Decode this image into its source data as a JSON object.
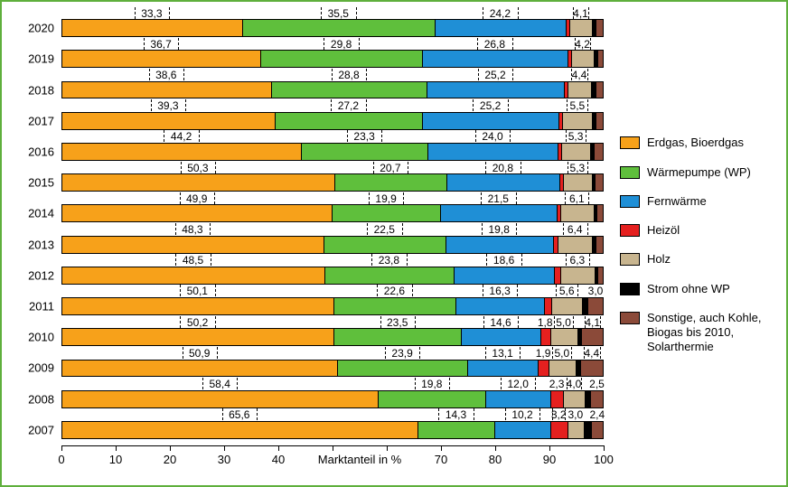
{
  "chart": {
    "type": "stacked-bar-horizontal",
    "xlim": [
      0,
      100
    ],
    "xtick_step": 10,
    "xlabel": "Marktanteil in %",
    "background_color": "#ffffff",
    "border_color": "#5FAF3C",
    "label_fontsize": 13,
    "data_label_fontsize": 12,
    "bar_height_ratio": 0.58,
    "years": [
      "2020",
      "2019",
      "2018",
      "2017",
      "2016",
      "2015",
      "2014",
      "2013",
      "2012",
      "2011",
      "2010",
      "2009",
      "2008",
      "2007"
    ],
    "series": [
      {
        "key": "erdgas",
        "label": "Erdgas, Bioerdgas",
        "color": "#F7A11A"
      },
      {
        "key": "wp",
        "label": "Wärmepumpe (WP)",
        "color": "#5FBF3C"
      },
      {
        "key": "fern",
        "label": "Fernwärme",
        "color": "#1F8FD6"
      },
      {
        "key": "heizol",
        "label": "Heizöl",
        "color": "#E5201F"
      },
      {
        "key": "holz",
        "label": "Holz",
        "color": "#C8B58F"
      },
      {
        "key": "strom",
        "label": "Strom ohne WP",
        "color": "#000000"
      },
      {
        "key": "sonst",
        "label": "Sonstige, auch Kohle, Biogas bis 2010, Solarthermie",
        "color": "#8B4A39"
      }
    ],
    "data": {
      "2020": {
        "erdgas": 33.3,
        "wp": 35.5,
        "fern": 24.2,
        "heizol": 0.7,
        "holz": 4.1,
        "strom": 0.7,
        "sonst": 1.5
      },
      "2019": {
        "erdgas": 36.7,
        "wp": 29.8,
        "fern": 26.8,
        "heizol": 0.7,
        "holz": 4.2,
        "strom": 0.6,
        "sonst": 1.2
      },
      "2018": {
        "erdgas": 38.6,
        "wp": 28.8,
        "fern": 25.2,
        "heizol": 0.7,
        "holz": 4.4,
        "strom": 0.8,
        "sonst": 1.5
      },
      "2017": {
        "erdgas": 39.3,
        "wp": 27.2,
        "fern": 25.2,
        "heizol": 0.7,
        "holz": 5.5,
        "strom": 0.6,
        "sonst": 1.5
      },
      "2016": {
        "erdgas": 44.2,
        "wp": 23.3,
        "fern": 24.0,
        "heizol": 0.7,
        "holz": 5.3,
        "strom": 0.7,
        "sonst": 1.8
      },
      "2015": {
        "erdgas": 50.3,
        "wp": 20.7,
        "fern": 20.8,
        "heizol": 0.7,
        "holz": 5.3,
        "strom": 0.6,
        "sonst": 1.6
      },
      "2014": {
        "erdgas": 49.9,
        "wp": 19.9,
        "fern": 21.5,
        "heizol": 0.7,
        "holz": 6.1,
        "strom": 0.5,
        "sonst": 1.4
      },
      "2013": {
        "erdgas": 48.3,
        "wp": 22.5,
        "fern": 19.8,
        "heizol": 0.9,
        "holz": 6.4,
        "strom": 0.6,
        "sonst": 1.5
      },
      "2012": {
        "erdgas": 48.5,
        "wp": 23.8,
        "fern": 18.6,
        "heizol": 1.1,
        "holz": 6.3,
        "strom": 0.5,
        "sonst": 1.2
      },
      "2011": {
        "erdgas": 50.1,
        "wp": 22.6,
        "fern": 16.3,
        "heizol": 1.4,
        "holz": 5.6,
        "strom": 1.0,
        "sonst": 3.0
      },
      "2010": {
        "erdgas": 50.2,
        "wp": 23.5,
        "fern": 14.6,
        "heizol": 1.8,
        "holz": 5.0,
        "strom": 0.8,
        "sonst": 4.1
      },
      "2009": {
        "erdgas": 50.9,
        "wp": 23.9,
        "fern": 13.1,
        "heizol": 1.9,
        "holz": 5.0,
        "strom": 0.8,
        "sonst": 4.4
      },
      "2008": {
        "erdgas": 58.4,
        "wp": 19.8,
        "fern": 12.0,
        "heizol": 2.3,
        "holz": 4.0,
        "strom": 1.0,
        "sonst": 2.5
      },
      "2007": {
        "erdgas": 65.6,
        "wp": 14.3,
        "fern": 10.2,
        "heizol": 3.2,
        "holz": 3.0,
        "strom": 1.3,
        "sonst": 2.4
      }
    },
    "show_labels": {
      "2020": [
        "erdgas",
        "wp",
        "fern",
        "holz"
      ],
      "2019": [
        "erdgas",
        "wp",
        "fern",
        "holz"
      ],
      "2018": [
        "erdgas",
        "wp",
        "fern",
        "holz"
      ],
      "2017": [
        "erdgas",
        "wp",
        "fern",
        "holz"
      ],
      "2016": [
        "erdgas",
        "wp",
        "fern",
        "holz"
      ],
      "2015": [
        "erdgas",
        "wp",
        "fern",
        "holz"
      ],
      "2014": [
        "erdgas",
        "wp",
        "fern",
        "holz"
      ],
      "2013": [
        "erdgas",
        "wp",
        "fern",
        "holz"
      ],
      "2012": [
        "erdgas",
        "wp",
        "fern",
        "holz"
      ],
      "2011": [
        "erdgas",
        "wp",
        "fern",
        "holz",
        "sonst"
      ],
      "2010": [
        "erdgas",
        "wp",
        "fern",
        "heizol",
        "holz",
        "sonst"
      ],
      "2009": [
        "erdgas",
        "wp",
        "fern",
        "heizol",
        "holz",
        "sonst"
      ],
      "2008": [
        "erdgas",
        "wp",
        "fern",
        "heizol",
        "holz",
        "sonst"
      ],
      "2007": [
        "erdgas",
        "wp",
        "fern",
        "heizol",
        "holz",
        "sonst"
      ]
    }
  }
}
